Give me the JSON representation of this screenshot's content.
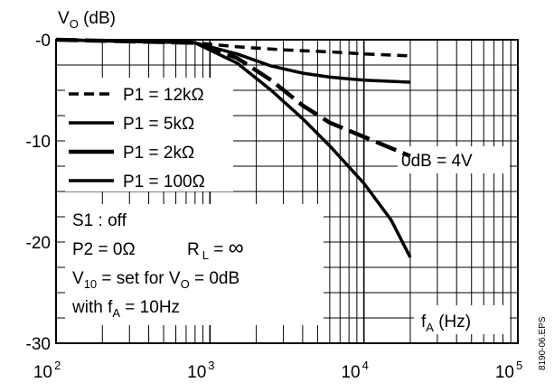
{
  "chart_data": {
    "type": "line",
    "ylabel": {
      "main": "V",
      "sub": "O",
      "rest": " (dB)"
    },
    "xlabel": {
      "main": "f",
      "sub": "A",
      "rest": " (Hz)"
    },
    "x_scale": "log",
    "xlim": [
      100,
      100000
    ],
    "ylim": [
      -30,
      0
    ],
    "y_ticks": [
      {
        "value": 0,
        "label": "-0"
      },
      {
        "value": -10,
        "label": "-10"
      },
      {
        "value": -20,
        "label": "-20"
      },
      {
        "value": -30,
        "label": "-30"
      }
    ],
    "x_ticks": [
      {
        "value": 100,
        "base": "10",
        "exp": "2"
      },
      {
        "value": 1000,
        "base": "10",
        "exp": "3"
      },
      {
        "value": 10000,
        "base": "10",
        "exp": "4"
      },
      {
        "value": 100000,
        "base": "10",
        "exp": "5"
      }
    ],
    "grid": true,
    "series": [
      {
        "name": "P1 = 12kΩ",
        "style": "dashed",
        "points": [
          [
            100,
            0
          ],
          [
            800,
            -0.3
          ],
          [
            1500,
            -0.7
          ],
          [
            3000,
            -1.0
          ],
          [
            6000,
            -1.2
          ],
          [
            10000,
            -1.4
          ],
          [
            20000,
            -1.6
          ]
        ]
      },
      {
        "name": "P1 = 5kΩ",
        "style": "solid",
        "points": [
          [
            100,
            0
          ],
          [
            800,
            -0.3
          ],
          [
            1500,
            -1.4
          ],
          [
            2500,
            -2.6
          ],
          [
            4000,
            -3.3
          ],
          [
            6000,
            -3.7
          ],
          [
            10000,
            -4.0
          ],
          [
            20000,
            -4.2
          ]
        ]
      },
      {
        "name": "P1 = 2kΩ",
        "style": "dash-long",
        "points": [
          [
            100,
            0
          ],
          [
            800,
            -0.3
          ],
          [
            1500,
            -1.8
          ],
          [
            2500,
            -4.0
          ],
          [
            4000,
            -6.5
          ],
          [
            6000,
            -8.2
          ],
          [
            10000,
            -9.6
          ],
          [
            20000,
            -11.5
          ]
        ]
      },
      {
        "name": "P1 = 100Ω",
        "style": "solid",
        "points": [
          [
            100,
            0
          ],
          [
            800,
            -0.3
          ],
          [
            1500,
            -2.3
          ],
          [
            2500,
            -5.0
          ],
          [
            4000,
            -7.8
          ],
          [
            6000,
            -10.5
          ],
          [
            10000,
            -14.2
          ],
          [
            15000,
            -17.8
          ],
          [
            20000,
            -21.5
          ]
        ]
      }
    ],
    "annotations": {
      "reference": "0dB = 4V",
      "s1": "S1 : off",
      "p2": "P2 = 0Ω",
      "rl": {
        "main": "R",
        "sub": "L",
        "rest": " = ",
        "symbol": "∞"
      },
      "v10": {
        "main": "V",
        "sub": "10",
        "mid": " = set for  V",
        "sub2": "O",
        "rest": " = 0dB"
      },
      "with": {
        "main": "with   f",
        "sub": "A",
        "rest": "  = 10Hz"
      },
      "file": "8190-06.EPS"
    }
  }
}
